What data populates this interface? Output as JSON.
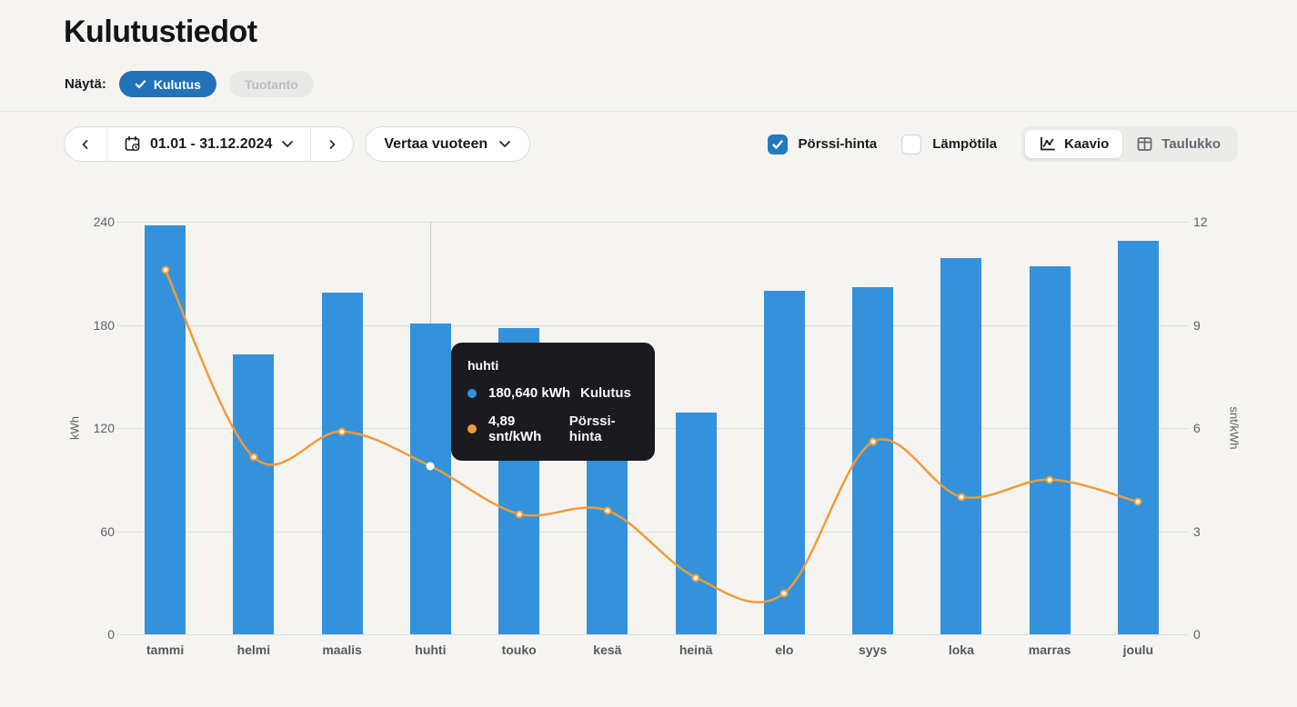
{
  "page": {
    "title": "Kulutustiedot"
  },
  "filters": {
    "label": "Näytä:",
    "options": [
      {
        "label": "Kulutus",
        "selected": true
      },
      {
        "label": "Tuotanto",
        "selected": false
      }
    ]
  },
  "toolbar": {
    "date_range": "01.01 - 31.12.2024",
    "compare_label": "Vertaa vuoteen",
    "checkboxes": [
      {
        "label": "Pörssi-hinta",
        "checked": true
      },
      {
        "label": "Lämpötila",
        "checked": false
      }
    ],
    "views": [
      {
        "label": "Kaavio",
        "active": true
      },
      {
        "label": "Taulukko",
        "active": false
      }
    ]
  },
  "tooltip": {
    "title": "huhti",
    "rows": [
      {
        "value": "180,640 kWh",
        "label": "Kulutus",
        "color": "#3392db"
      },
      {
        "value": "4,89 snt/kWh",
        "label": "Pörssi-hinta",
        "color": "#ef9c3b"
      }
    ]
  },
  "chart_data": {
    "type": "bar",
    "subtype": "bar+line combo, dual axis",
    "categories": [
      "tammi",
      "helmi",
      "maalis",
      "huhti",
      "touko",
      "kesä",
      "heinä",
      "elo",
      "syys",
      "loka",
      "marras",
      "joulu"
    ],
    "series": [
      {
        "name": "Kulutus",
        "type": "bar",
        "axis": "left",
        "unit": "kWh",
        "color": "#3392db",
        "values": [
          238,
          163,
          199,
          180.64,
          178,
          135,
          129,
          200,
          202,
          219,
          214,
          229
        ]
      },
      {
        "name": "Pörssi-hinta",
        "type": "line",
        "axis": "right",
        "unit": "snt/kWh",
        "color": "#ef9c3b",
        "values": [
          10.6,
          5.15,
          5.9,
          4.89,
          3.5,
          3.6,
          1.65,
          1.2,
          5.6,
          4.0,
          4.5,
          3.85
        ]
      }
    ],
    "left_axis": {
      "label": "kWh",
      "ticks": [
        0,
        60,
        120,
        180,
        240
      ],
      "min": 0,
      "max": 240
    },
    "right_axis": {
      "label": "snt/kWh",
      "ticks": [
        0,
        3,
        6,
        9,
        12
      ],
      "min": 0,
      "max": 12
    },
    "grid": true,
    "legend_position": "none",
    "highlight": {
      "index": 3,
      "category": "huhti"
    }
  },
  "icons": [
    "check-icon",
    "calendar-icon",
    "chevron-left-icon",
    "chevron-right-icon",
    "chevron-down-icon",
    "line-chart-icon",
    "table-icon"
  ],
  "colors": {
    "page_bg": "#f5f4f1",
    "bar_blue": "#3392db",
    "line_orange": "#ef9c3b",
    "selected_pill_blue": "#2272b8",
    "checkbox_blue": "#2478bd",
    "tooltip_bg": "#1a1a1f",
    "gridline": "#dcdcd8"
  }
}
